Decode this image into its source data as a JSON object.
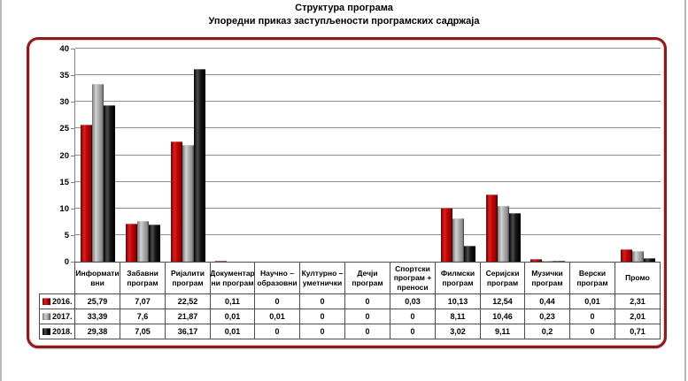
{
  "title": {
    "line1": "Структура програма",
    "line2": "Упоредни приказ заступљености програмских садржаја"
  },
  "frame": {
    "border_color": "#8b1c1c"
  },
  "chart_data": {
    "type": "bar",
    "title": "Структура програма — Упоредни приказ заступљености програмских садржаја",
    "xlabel": "",
    "ylabel": "",
    "ylim": [
      0,
      40
    ],
    "y_step": 5,
    "y_ticks": [
      "0",
      "5",
      "10",
      "15",
      "20",
      "25",
      "30",
      "35",
      "40"
    ],
    "grid": true,
    "legend_position": "table-left",
    "categories": [
      "Информативни",
      "Забавни програм",
      "Ријалити програм",
      "Документарни програм",
      "Научно – образовни",
      "Културно – уметнички",
      "Дечји програм",
      "Спортски програм + преноси",
      "Филмски програм",
      "Серијски програм",
      "Музички програм",
      "Верски програм",
      "Промо"
    ],
    "categories_display": [
      [
        "Информати",
        "вни"
      ],
      [
        "Забавни",
        "програм"
      ],
      [
        "Ријалити",
        "програм"
      ],
      [
        "Документар",
        "ни програм"
      ],
      [
        "Научно –",
        "образовни"
      ],
      [
        "Културно –",
        "уметнички"
      ],
      [
        "Дечји",
        "програм"
      ],
      [
        "Спортски",
        "програм +",
        "преноси"
      ],
      [
        "Филмски",
        "програм"
      ],
      [
        "Серијски",
        "програм"
      ],
      [
        "Музички",
        "програм"
      ],
      [
        "Верски",
        "програм"
      ],
      [
        "Промо"
      ]
    ],
    "series": [
      {
        "name": "2016.",
        "color": "#c00000",
        "values": [
          25.79,
          7.07,
          22.52,
          0.11,
          0,
          0,
          0,
          0.03,
          10.13,
          12.54,
          0.44,
          0.01,
          2.31
        ],
        "display": [
          "25,79",
          "7,07",
          "22,52",
          "0,11",
          "0",
          "0",
          "0",
          "0,03",
          "10,13",
          "12,54",
          "0,44",
          "0,01",
          "2,31"
        ]
      },
      {
        "name": "2017.",
        "color": "#a6a6a6",
        "values": [
          33.39,
          7.6,
          21.87,
          0.01,
          0.01,
          0,
          0,
          0,
          8.11,
          10.46,
          0.23,
          0,
          2.01
        ],
        "display": [
          "33,39",
          "7,6",
          "21,87",
          "0,01",
          "0,01",
          "0",
          "0",
          "0",
          "8,11",
          "10,46",
          "0,23",
          "0",
          "2,01"
        ]
      },
      {
        "name": "2018.",
        "color": "#141414",
        "values": [
          29.38,
          7.05,
          36.17,
          0.01,
          0,
          0,
          0,
          0,
          3.02,
          9.11,
          0.2,
          0,
          0.71
        ],
        "display": [
          "29,38",
          "7,05",
          "36,17",
          "0,01",
          "0",
          "0",
          "0",
          "0",
          "3,02",
          "9,11",
          "0,2",
          "0",
          "0,71"
        ]
      }
    ]
  }
}
